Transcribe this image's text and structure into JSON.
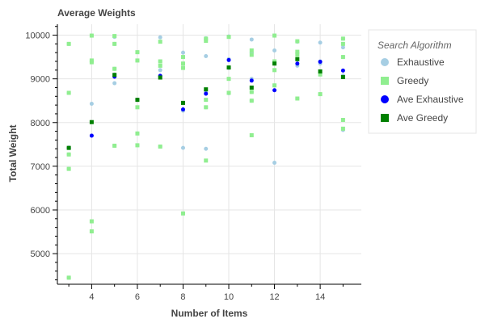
{
  "chart_data": {
    "type": "scatter",
    "title": "Average Weights",
    "xlabel": "Number of Items",
    "ylabel": "Total Weight",
    "xlim": [
      2.5,
      15.8
    ],
    "ylim": [
      4300,
      10250
    ],
    "xticks": [
      4,
      6,
      8,
      10,
      12,
      14
    ],
    "yticks": [
      5000,
      6000,
      7000,
      8000,
      9000,
      10000
    ],
    "grid": true,
    "legend": {
      "title": "Search Algorithm",
      "position": "right"
    },
    "series": [
      {
        "name": "Exhaustive",
        "marker": "circle",
        "color": "#a6cee3",
        "points": [
          [
            3,
            9800
          ],
          [
            3,
            8680
          ],
          [
            3,
            7270
          ],
          [
            3,
            6940
          ],
          [
            3,
            4450
          ],
          [
            4,
            9990
          ],
          [
            4,
            9400
          ],
          [
            4,
            8430
          ],
          [
            4,
            7700
          ],
          [
            5,
            9960
          ],
          [
            5,
            9800
          ],
          [
            5,
            9230
          ],
          [
            5,
            9100
          ],
          [
            5,
            8900
          ],
          [
            5,
            7470
          ],
          [
            6,
            9610
          ],
          [
            6,
            9420
          ],
          [
            6,
            8520
          ],
          [
            6,
            7750
          ],
          [
            6,
            7480
          ],
          [
            7,
            9950
          ],
          [
            7,
            9400
          ],
          [
            7,
            9200
          ],
          [
            7,
            9050
          ],
          [
            7,
            7450
          ],
          [
            8,
            9600
          ],
          [
            8,
            9500
          ],
          [
            8,
            9350
          ],
          [
            8,
            8270
          ],
          [
            8,
            7420
          ],
          [
            8,
            5920
          ],
          [
            9,
            9930
          ],
          [
            9,
            9520
          ],
          [
            9,
            8700
          ],
          [
            9,
            8350
          ],
          [
            9,
            7400
          ],
          [
            10,
            9970
          ],
          [
            10,
            9450
          ],
          [
            10,
            9250
          ],
          [
            10,
            8670
          ],
          [
            11,
            9900
          ],
          [
            11,
            9600
          ],
          [
            11,
            9000
          ],
          [
            11,
            8700
          ],
          [
            11,
            8500
          ],
          [
            12,
            9990
          ],
          [
            12,
            9650
          ],
          [
            12,
            9400
          ],
          [
            12,
            8850
          ],
          [
            12,
            7080
          ],
          [
            13,
            9850
          ],
          [
            13,
            9600
          ],
          [
            13,
            9300
          ],
          [
            13,
            8550
          ],
          [
            14,
            9830
          ],
          [
            14,
            9400
          ],
          [
            14,
            9350
          ],
          [
            14,
            8650
          ],
          [
            15,
            9920
          ],
          [
            15,
            9720
          ],
          [
            15,
            9500
          ],
          [
            15,
            9080
          ],
          [
            15,
            7830
          ]
        ]
      },
      {
        "name": "Greedy",
        "marker": "square",
        "color": "#90ee90",
        "points": [
          [
            3,
            9800
          ],
          [
            3,
            8680
          ],
          [
            3,
            7270
          ],
          [
            3,
            6940
          ],
          [
            3,
            4450
          ],
          [
            4,
            9990
          ],
          [
            4,
            9420
          ],
          [
            4,
            9380
          ],
          [
            4,
            5740
          ],
          [
            4,
            5510
          ],
          [
            5,
            9980
          ],
          [
            5,
            9800
          ],
          [
            5,
            9230
          ],
          [
            5,
            7470
          ],
          [
            6,
            9610
          ],
          [
            6,
            9420
          ],
          [
            6,
            8350
          ],
          [
            6,
            7750
          ],
          [
            6,
            7480
          ],
          [
            7,
            9850
          ],
          [
            7,
            9400
          ],
          [
            7,
            9300
          ],
          [
            7,
            7450
          ],
          [
            8,
            9500
          ],
          [
            8,
            9350
          ],
          [
            8,
            9250
          ],
          [
            8,
            8450
          ],
          [
            8,
            5920
          ],
          [
            9,
            9920
          ],
          [
            9,
            9870
          ],
          [
            9,
            8520
          ],
          [
            9,
            8350
          ],
          [
            9,
            7130
          ],
          [
            10,
            9960
          ],
          [
            10,
            9000
          ],
          [
            10,
            8680
          ],
          [
            11,
            9650
          ],
          [
            11,
            9550
          ],
          [
            11,
            8700
          ],
          [
            11,
            8500
          ],
          [
            11,
            7710
          ],
          [
            12,
            9990
          ],
          [
            12,
            9400
          ],
          [
            12,
            9200
          ],
          [
            12,
            8850
          ],
          [
            13,
            9860
          ],
          [
            13,
            9620
          ],
          [
            13,
            9550
          ],
          [
            13,
            8550
          ],
          [
            14,
            9100
          ],
          [
            14,
            8650
          ],
          [
            15,
            9920
          ],
          [
            15,
            9800
          ],
          [
            15,
            9500
          ],
          [
            15,
            8060
          ],
          [
            15,
            7860
          ]
        ]
      },
      {
        "name": "Ave Exhaustive",
        "marker": "circle",
        "color": "#0000ff",
        "points": [
          [
            3,
            7420
          ],
          [
            4,
            7700
          ],
          [
            5,
            9050
          ],
          [
            6,
            8520
          ],
          [
            7,
            9070
          ],
          [
            8,
            8300
          ],
          [
            9,
            8660
          ],
          [
            10,
            9430
          ],
          [
            11,
            8960
          ],
          [
            12,
            8740
          ],
          [
            13,
            9350
          ],
          [
            14,
            9390
          ],
          [
            15,
            9190
          ]
        ]
      },
      {
        "name": "Ave Greedy",
        "marker": "square",
        "color": "#008000",
        "points": [
          [
            3,
            7420
          ],
          [
            4,
            8010
          ],
          [
            5,
            9090
          ],
          [
            6,
            8520
          ],
          [
            7,
            9030
          ],
          [
            8,
            8450
          ],
          [
            9,
            8760
          ],
          [
            10,
            9260
          ],
          [
            11,
            8800
          ],
          [
            12,
            9350
          ],
          [
            13,
            9450
          ],
          [
            14,
            9170
          ],
          [
            15,
            9040
          ]
        ]
      }
    ]
  }
}
